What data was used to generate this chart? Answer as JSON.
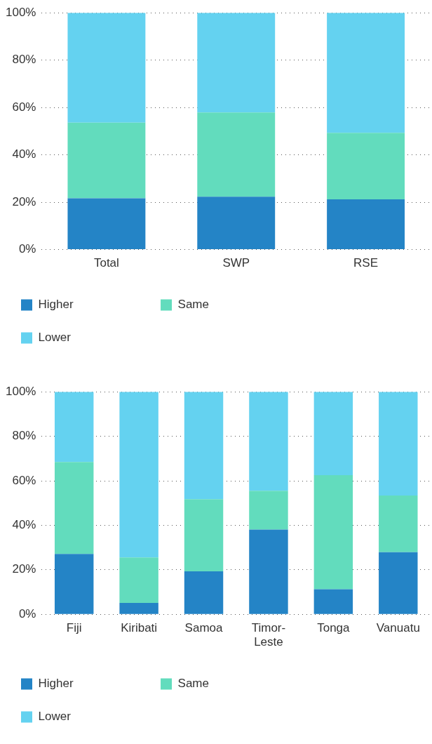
{
  "chart_data": [
    {
      "type": "bar",
      "stacked": true,
      "categories": [
        "Total",
        "SWP",
        "RSE"
      ],
      "series": [
        {
          "name": "Higher",
          "color": "#2484c6",
          "values": [
            21.7,
            22.3,
            21.2
          ]
        },
        {
          "name": "Same",
          "color": "#62dcbd",
          "values": [
            31.9,
            35.6,
            28.1
          ]
        },
        {
          "name": "Lower",
          "color": "#64d2f0",
          "values": [
            46.4,
            42.1,
            50.7
          ]
        }
      ],
      "ylim": [
        0,
        100
      ],
      "yticks": [
        {
          "value": 0,
          "label": "0%"
        },
        {
          "value": 20,
          "label": "20%"
        },
        {
          "value": 40,
          "label": "40%"
        },
        {
          "value": 60,
          "label": "60%"
        },
        {
          "value": 80,
          "label": "80%"
        },
        {
          "value": 100,
          "label": "100%"
        }
      ],
      "grid": "y",
      "legend": "bottom"
    },
    {
      "type": "bar",
      "stacked": true,
      "categories": [
        "Fiji",
        "Kiribati",
        "Samoa",
        "Timor-\nLeste",
        "Tonga",
        "Vanuatu"
      ],
      "series": [
        {
          "name": "Higher",
          "color": "#2484c6",
          "values": [
            27.1,
            5.1,
            19.3,
            38.1,
            11.3,
            27.9
          ]
        },
        {
          "name": "Same",
          "color": "#62dcbd",
          "values": [
            41.3,
            20.4,
            32.4,
            17.4,
            51.2,
            25.5
          ]
        },
        {
          "name": "Lower",
          "color": "#64d2f0",
          "values": [
            31.6,
            74.5,
            48.3,
            44.5,
            37.5,
            46.6
          ]
        }
      ],
      "ylim": [
        0,
        100
      ],
      "yticks": [
        {
          "value": 0,
          "label": "0%"
        },
        {
          "value": 20,
          "label": "20%"
        },
        {
          "value": 40,
          "label": "40%"
        },
        {
          "value": 60,
          "label": "60%"
        },
        {
          "value": 80,
          "label": "80%"
        },
        {
          "value": 100,
          "label": "100%"
        }
      ],
      "grid": "y",
      "legend": "bottom"
    }
  ]
}
